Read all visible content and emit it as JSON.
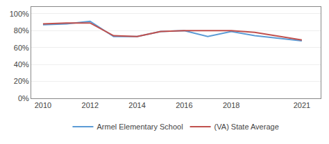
{
  "chart_data": {
    "type": "line",
    "x": [
      2010,
      2011,
      2012,
      2013,
      2014,
      2015,
      2016,
      2017,
      2018,
      2019,
      2021
    ],
    "series": [
      {
        "name": "Armel Elementary School",
        "color": "#5b9bd5",
        "values": [
          0.87,
          0.88,
          0.91,
          0.73,
          0.73,
          0.79,
          0.8,
          0.73,
          0.79,
          0.74,
          0.68
        ]
      },
      {
        "name": "(VA) State Average",
        "color": "#c0504d",
        "values": [
          0.88,
          0.89,
          0.89,
          0.74,
          0.73,
          0.79,
          0.8,
          0.8,
          0.8,
          0.78,
          0.69
        ]
      }
    ],
    "xlim": [
      2009.5,
      2021.8
    ],
    "xticks": [
      2010,
      2012,
      2014,
      2016,
      2018,
      2021
    ],
    "ylim": [
      0.0,
      1.08
    ],
    "yticks": [
      {
        "value": 0.0,
        "label": "0%"
      },
      {
        "value": 0.2,
        "label": "20%"
      },
      {
        "value": 0.4,
        "label": "40%"
      },
      {
        "value": 0.6,
        "label": "60%"
      },
      {
        "value": 0.8,
        "label": "80%"
      },
      {
        "value": 1.0,
        "label": "100%"
      }
    ],
    "grid": "y",
    "legend": "bottom"
  }
}
